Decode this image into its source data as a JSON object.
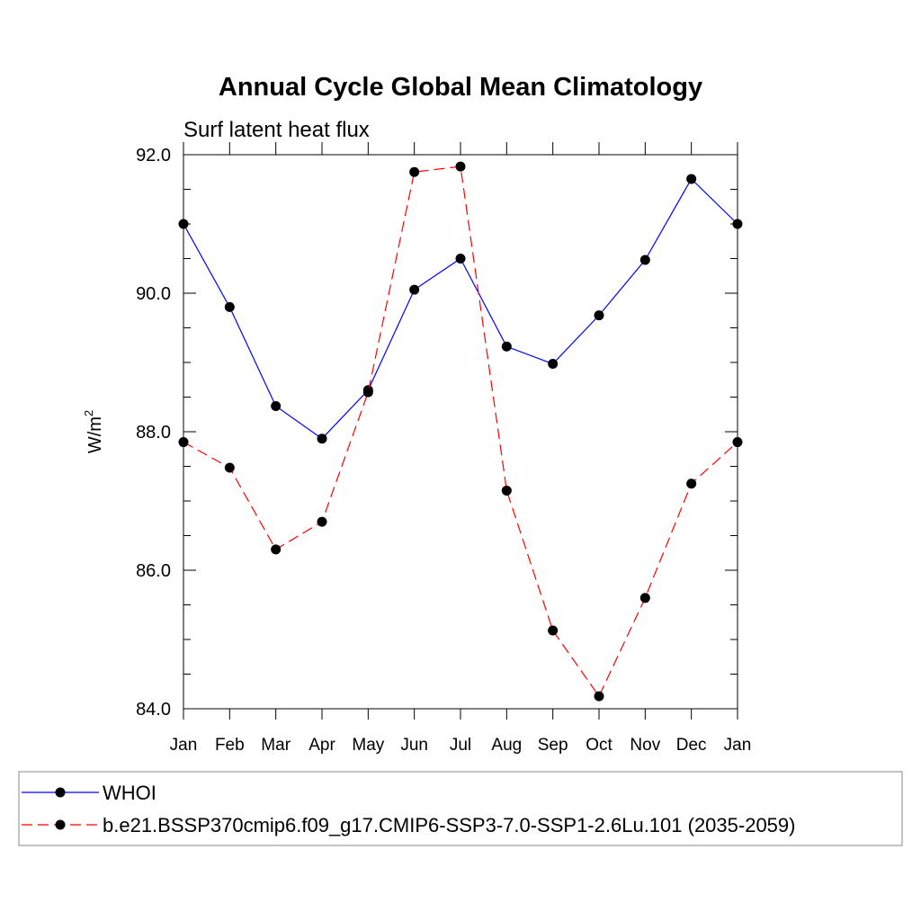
{
  "chart_data": {
    "type": "line",
    "title": "Annual Cycle Global Mean Climatology",
    "subtitle": "Surf latent heat flux",
    "ylabel": "W/m",
    "ylabel_sup": "2",
    "xlabel": "",
    "categories": [
      "Jan",
      "Feb",
      "Mar",
      "Apr",
      "May",
      "Jun",
      "Jul",
      "Aug",
      "Sep",
      "Oct",
      "Nov",
      "Dec",
      "Jan"
    ],
    "ylim": [
      84.0,
      92.0
    ],
    "yticks": [
      "84.0",
      "86.0",
      "88.0",
      "90.0",
      "92.0"
    ],
    "grid": false,
    "legend_position": "bottom",
    "series": [
      {
        "name": "WHOI",
        "color": "#0000ff",
        "dash": "solid",
        "values": [
          91.0,
          89.8,
          88.37,
          87.9,
          88.6,
          90.05,
          90.5,
          89.23,
          88.98,
          89.68,
          90.48,
          91.65,
          91.0
        ]
      },
      {
        "name": "b.e21.BSSP370cmip6.f09_g17.CMIP6-SSP3-7.0-SSP1-2.6Lu.101 (2035-2059)",
        "color": "#ff0000",
        "dash": "dashed",
        "values": [
          87.85,
          87.48,
          86.3,
          86.7,
          88.57,
          91.75,
          91.83,
          87.15,
          85.13,
          84.18,
          85.6,
          87.25,
          87.85
        ]
      }
    ]
  }
}
